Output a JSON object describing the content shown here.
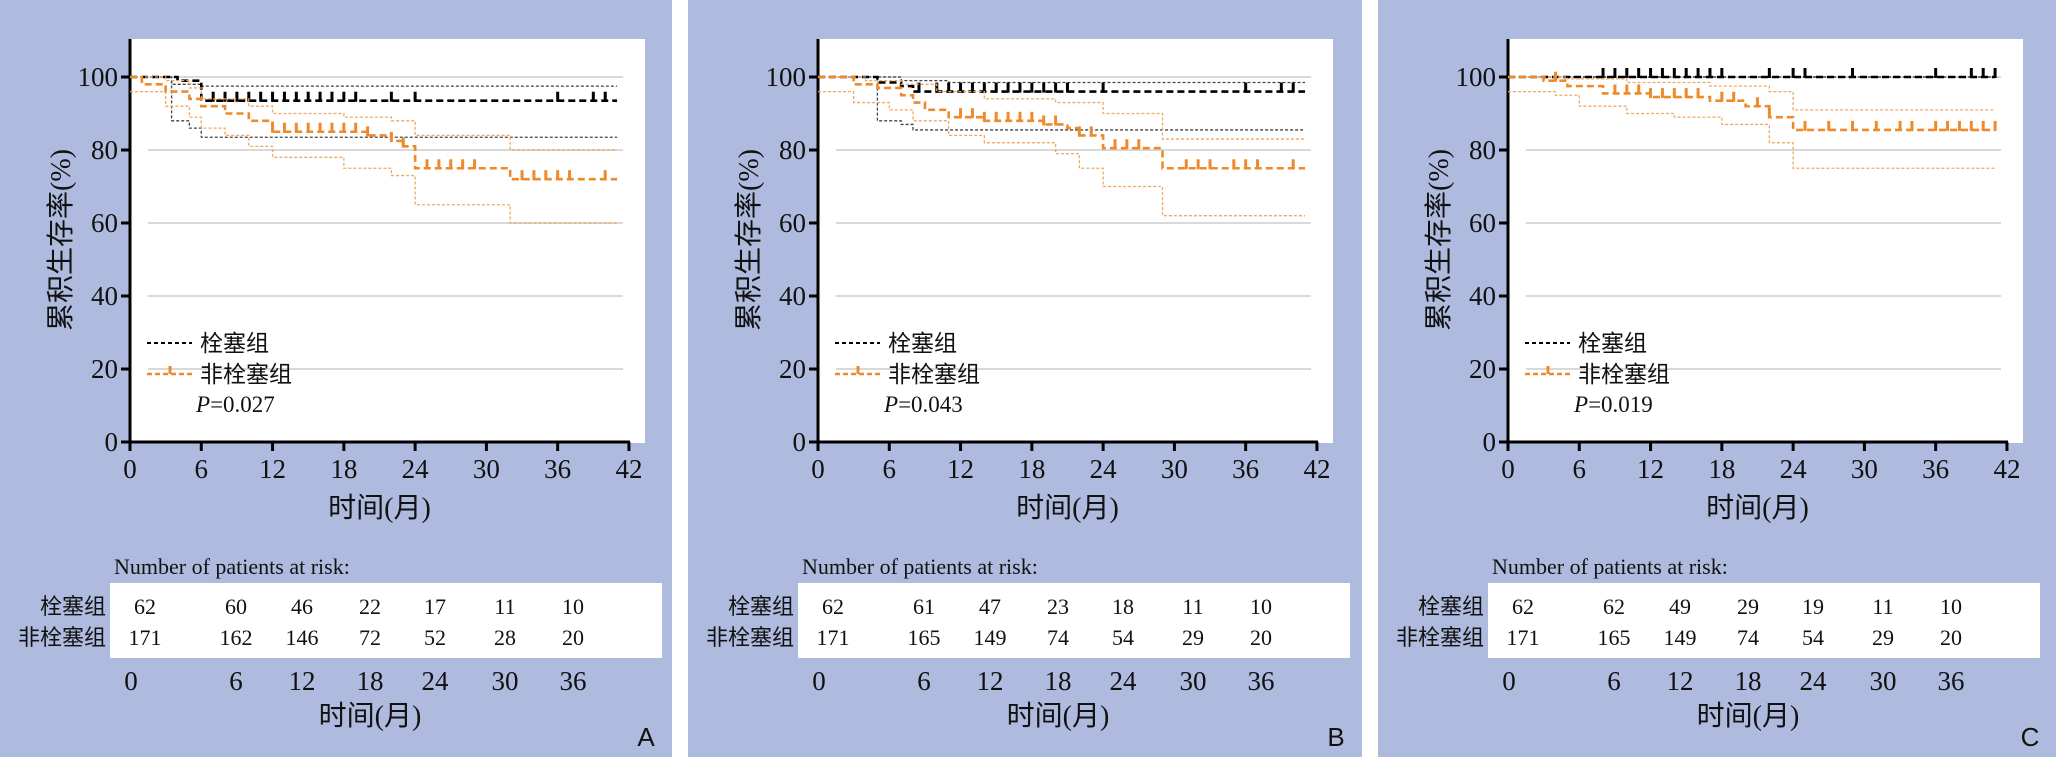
{
  "colors": {
    "panel_bg": "#aebbdf",
    "embolism": "#000000",
    "non_embolism": "#ee8a2b",
    "grid": "#d9d9d9"
  },
  "chart_data": [
    {
      "panel": "A",
      "type": "line",
      "xlabel": "时间(月)",
      "ylabel": "累积生存率(%)",
      "xlim": [
        0,
        42
      ],
      "ylim": [
        0,
        100
      ],
      "xticks": [
        "0",
        "6",
        "12",
        "18",
        "24",
        "30",
        "36",
        "42"
      ],
      "yticks": [
        "0",
        "20",
        "40",
        "60",
        "80",
        "100"
      ],
      "legend": [
        "栓塞组",
        "非栓塞组"
      ],
      "p_label": "P",
      "p_value": "=0.027",
      "series": [
        {
          "name": "栓塞组",
          "color": "#000000",
          "steps": [
            [
              0,
              100
            ],
            [
              4,
              99
            ],
            [
              6,
              93.5
            ]
          ],
          "ci_upper": [
            [
              0,
              100
            ],
            [
              3.5,
              98
            ],
            [
              6,
              97.5
            ]
          ],
          "ci_lower": [
            [
              0,
              100
            ],
            [
              3.5,
              88
            ],
            [
              5,
              86
            ],
            [
              6,
              83.5
            ]
          ],
          "censor": [
            7,
            8,
            9,
            10,
            11,
            12,
            13,
            14,
            15,
            16,
            17,
            18,
            19,
            22,
            24,
            36,
            39,
            40
          ]
        },
        {
          "name": "非栓塞组",
          "color": "#ee8a2b",
          "steps": [
            [
              0,
              100
            ],
            [
              1,
              98
            ],
            [
              3,
              96
            ],
            [
              5,
              94
            ],
            [
              6,
              92
            ],
            [
              8,
              90
            ],
            [
              10,
              88
            ],
            [
              12,
              85
            ],
            [
              20,
              84
            ],
            [
              22,
              82.5
            ],
            [
              23,
              81
            ],
            [
              24,
              75
            ],
            [
              32,
              72
            ]
          ],
          "ci_upper": [
            [
              0,
              100
            ],
            [
              3,
              99
            ],
            [
              5,
              97
            ],
            [
              6,
              94
            ],
            [
              10,
              92
            ],
            [
              12,
              90
            ],
            [
              18,
              89
            ],
            [
              22,
              88
            ],
            [
              24,
              84
            ],
            [
              32,
              80
            ]
          ],
          "ci_lower": [
            [
              0,
              96
            ],
            [
              3,
              92
            ],
            [
              5,
              89
            ],
            [
              6,
              86
            ],
            [
              8,
              84
            ],
            [
              10,
              81
            ],
            [
              12,
              78
            ],
            [
              18,
              75
            ],
            [
              22,
              73
            ],
            [
              24,
              65
            ],
            [
              32,
              60
            ]
          ],
          "censor": [
            12,
            13,
            14,
            15,
            16,
            17,
            18,
            19,
            20,
            22,
            23,
            25,
            26,
            27,
            28,
            29,
            33,
            34,
            35,
            36,
            37,
            40
          ]
        }
      ],
      "risk_table": {
        "title": "Number of patients at risk:",
        "times": [
          "0",
          "6",
          "12",
          "18",
          "24",
          "30",
          "36"
        ],
        "xlabel": "时间(月)",
        "rows": [
          {
            "label": "栓塞组",
            "values": [
              "62",
              "60",
              "46",
              "22",
              "17",
              "11",
              "10"
            ]
          },
          {
            "label": "非栓塞组",
            "values": [
              "171",
              "162",
              "146",
              "72",
              "52",
              "28",
              "20"
            ]
          }
        ]
      }
    },
    {
      "panel": "B",
      "type": "line",
      "xlabel": "时间(月)",
      "ylabel": "累积生存率(%)",
      "xlim": [
        0,
        42
      ],
      "ylim": [
        0,
        100
      ],
      "xticks": [
        "0",
        "6",
        "12",
        "18",
        "24",
        "30",
        "36",
        "42"
      ],
      "yticks": [
        "0",
        "20",
        "40",
        "60",
        "80",
        "100"
      ],
      "legend": [
        "栓塞组",
        "非栓塞组"
      ],
      "p_label": "P",
      "p_value": "=0.043",
      "series": [
        {
          "name": "栓塞组",
          "color": "#000000",
          "steps": [
            [
              0,
              100
            ],
            [
              5,
              98.5
            ],
            [
              7,
              97.5
            ],
            [
              8,
              96
            ]
          ],
          "ci_upper": [
            [
              0,
              100
            ],
            [
              7,
              99
            ],
            [
              11,
              98.5
            ]
          ],
          "ci_lower": [
            [
              0,
              100
            ],
            [
              5,
              88
            ],
            [
              7,
              87
            ],
            [
              8,
              85.5
            ]
          ],
          "censor": [
            8.5,
            10,
            11,
            12,
            13,
            14,
            15,
            16,
            17,
            18,
            19,
            20,
            21,
            24,
            36,
            39,
            40
          ]
        },
        {
          "name": "非栓塞组",
          "color": "#ee8a2b",
          "steps": [
            [
              0,
              100
            ],
            [
              3,
              98
            ],
            [
              5,
              97
            ],
            [
              7,
              95
            ],
            [
              8,
              93
            ],
            [
              9,
              91
            ],
            [
              11,
              89
            ],
            [
              14,
              88
            ],
            [
              19,
              87
            ],
            [
              21,
              86
            ],
            [
              22,
              84
            ],
            [
              24,
              80.5
            ],
            [
              29,
              75
            ]
          ],
          "ci_upper": [
            [
              0,
              100
            ],
            [
              4,
              99
            ],
            [
              7,
              98
            ],
            [
              10,
              96
            ],
            [
              14,
              94
            ],
            [
              20,
              93
            ],
            [
              24,
              90
            ],
            [
              29,
              83
            ]
          ],
          "ci_lower": [
            [
              0,
              96
            ],
            [
              3,
              93
            ],
            [
              6,
              91
            ],
            [
              8,
              88
            ],
            [
              11,
              84
            ],
            [
              14,
              82
            ],
            [
              20,
              79
            ],
            [
              22,
              75
            ],
            [
              24,
              70
            ],
            [
              29,
              62
            ]
          ],
          "censor": [
            12,
            13,
            14,
            15,
            16,
            17,
            18,
            19,
            20,
            22,
            23,
            25,
            26,
            27,
            31,
            32,
            33,
            35,
            36,
            37,
            40
          ]
        }
      ],
      "risk_table": {
        "title": "Number of patients at risk:",
        "times": [
          "0",
          "6",
          "12",
          "18",
          "24",
          "30",
          "36"
        ],
        "xlabel": "时间(月)",
        "rows": [
          {
            "label": "栓塞组",
            "values": [
              "62",
              "61",
              "47",
              "23",
              "18",
              "11",
              "10"
            ]
          },
          {
            "label": "非栓塞组",
            "values": [
              "171",
              "165",
              "149",
              "74",
              "54",
              "29",
              "20"
            ]
          }
        ]
      }
    },
    {
      "panel": "C",
      "type": "line",
      "xlabel": "时间(月)",
      "ylabel": "累积生存率(%)",
      "xlim": [
        0,
        42
      ],
      "ylim": [
        0,
        100
      ],
      "xticks": [
        "0",
        "6",
        "12",
        "18",
        "24",
        "30",
        "36",
        "42"
      ],
      "yticks": [
        "0",
        "20",
        "40",
        "60",
        "80",
        "100"
      ],
      "legend": [
        "栓塞组",
        "非栓塞组"
      ],
      "p_label": "P",
      "p_value": "=0.019",
      "series": [
        {
          "name": "栓塞组",
          "color": "#000000",
          "steps": [
            [
              0,
              100
            ]
          ],
          "ci_upper": [
            [
              0,
              100
            ]
          ],
          "ci_lower": [
            [
              0,
              100
            ]
          ],
          "censor": [
            8,
            9,
            10,
            11,
            12,
            13,
            14,
            15,
            16,
            17,
            18,
            22,
            24,
            25,
            29,
            36,
            39,
            40,
            41
          ]
        },
        {
          "name": "非栓塞组",
          "color": "#ee8a2b",
          "steps": [
            [
              0,
              100
            ],
            [
              3,
              99
            ],
            [
              5,
              97.5
            ],
            [
              8,
              95.5
            ],
            [
              12,
              94.5
            ],
            [
              17,
              93.5
            ],
            [
              20,
              92
            ],
            [
              22,
              89
            ],
            [
              24,
              85.5
            ]
          ],
          "ci_upper": [
            [
              0,
              100
            ],
            [
              5,
              99.5
            ],
            [
              10,
              98.5
            ],
            [
              17,
              97.5
            ],
            [
              22,
              96
            ],
            [
              24,
              91
            ]
          ],
          "ci_lower": [
            [
              0,
              96
            ],
            [
              4,
              95
            ],
            [
              6,
              92
            ],
            [
              10,
              90
            ],
            [
              14,
              89
            ],
            [
              18,
              87
            ],
            [
              22,
              82
            ],
            [
              24,
              75
            ]
          ],
          "censor": [
            4,
            9,
            10,
            11,
            12,
            13,
            14,
            15,
            16,
            18,
            19,
            21,
            22,
            25,
            27,
            29,
            31,
            33,
            34,
            36,
            37,
            38,
            39,
            40,
            41
          ]
        }
      ],
      "risk_table": {
        "title": "Number of patients at risk:",
        "times": [
          "0",
          "6",
          "12",
          "18",
          "24",
          "30",
          "36"
        ],
        "xlabel": "时间(月)",
        "rows": [
          {
            "label": "栓塞组",
            "values": [
              "62",
              "62",
              "49",
              "29",
              "19",
              "11",
              "10"
            ]
          },
          {
            "label": "非栓塞组",
            "values": [
              "171",
              "165",
              "149",
              "74",
              "54",
              "29",
              "20"
            ]
          }
        ]
      }
    }
  ]
}
